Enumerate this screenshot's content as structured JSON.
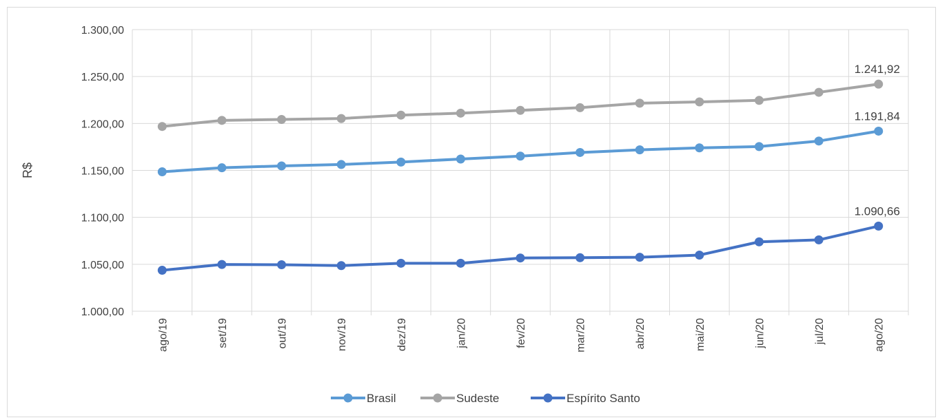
{
  "chart_data": {
    "type": "line",
    "title": "",
    "xlabel": "",
    "ylabel": "R$",
    "ylim": [
      1000,
      1300
    ],
    "yticks": [
      1000,
      1050,
      1100,
      1150,
      1200,
      1250,
      1300
    ],
    "ytick_labels": [
      "1.000,00",
      "1.050,00",
      "1.100,00",
      "1.150,00",
      "1.200,00",
      "1.250,00",
      "1.300,00"
    ],
    "grid": true,
    "legend_position": "bottom",
    "categories": [
      "ago/19",
      "set/19",
      "out/19",
      "nov/19",
      "dez/19",
      "jan/20",
      "fev/20",
      "mar/20",
      "abr/20",
      "mai/20",
      "jun/20",
      "jul/20",
      "ago/20"
    ],
    "series": [
      {
        "name": "Brasil",
        "color": "#5b9bd5",
        "values": [
          1148.5,
          1152.8,
          1154.8,
          1156.3,
          1158.9,
          1162.1,
          1165.2,
          1169.1,
          1171.9,
          1174.0,
          1175.4,
          1181.3,
          1191.84
        ],
        "last_label": "1.191,84"
      },
      {
        "name": "Sudeste",
        "color": "#a5a5a5",
        "values": [
          1196.8,
          1203.3,
          1204.3,
          1205.3,
          1208.9,
          1211.0,
          1214.0,
          1216.8,
          1221.6,
          1223.0,
          1224.6,
          1233.2,
          1241.92
        ],
        "last_label": "1.241,92"
      },
      {
        "name": "Espírito Santo",
        "color": "#4472c4",
        "values": [
          1043.6,
          1049.8,
          1049.5,
          1048.6,
          1051.1,
          1051.1,
          1056.7,
          1057.0,
          1057.5,
          1059.8,
          1073.9,
          1076.0,
          1090.66
        ],
        "last_label": "1.090,66"
      }
    ]
  }
}
